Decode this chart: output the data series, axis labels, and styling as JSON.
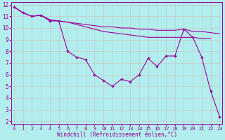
{
  "xlabel": "Windchill (Refroidissement éolien,°C)",
  "background_color": "#b2eeee",
  "line_color": "#990099",
  "grid_color": "#cccccc",
  "xlim": [
    0,
    23
  ],
  "ylim": [
    2,
    12
  ],
  "yticks": [
    2,
    3,
    4,
    5,
    6,
    7,
    8,
    9,
    10,
    11,
    12
  ],
  "xticks": [
    0,
    1,
    2,
    3,
    4,
    5,
    6,
    7,
    8,
    9,
    10,
    11,
    12,
    13,
    14,
    15,
    16,
    17,
    18,
    19,
    20,
    21,
    22,
    23
  ],
  "line1_x": [
    0,
    1,
    2,
    3,
    4,
    5,
    6,
    7,
    8,
    9,
    10,
    11,
    12,
    13,
    14,
    15,
    16,
    17,
    18,
    19,
    20,
    21,
    22,
    23
  ],
  "line1_y": [
    11.8,
    11.3,
    11.0,
    11.1,
    10.6,
    10.6,
    8.0,
    7.5,
    7.3,
    6.0,
    5.5,
    5.0,
    5.6,
    5.4,
    6.0,
    7.4,
    6.7,
    7.6,
    7.6,
    9.9,
    9.2,
    7.5,
    4.6,
    2.4
  ],
  "line2_x": [
    0,
    1,
    2,
    3,
    4,
    5,
    6,
    7,
    8,
    9,
    10,
    11,
    12,
    13,
    14,
    15,
    16,
    17,
    18,
    19,
    20,
    21,
    22,
    23
  ],
  "line2_y": [
    11.8,
    11.3,
    11.0,
    11.1,
    10.7,
    10.6,
    10.5,
    10.4,
    10.3,
    10.2,
    10.1,
    10.1,
    10.0,
    10.0,
    9.9,
    9.9,
    9.8,
    9.8,
    9.8,
    9.9,
    9.7,
    9.7,
    9.6,
    9.5
  ],
  "line3_x": [
    0,
    1,
    2,
    3,
    4,
    5,
    6,
    7,
    8,
    9,
    10,
    11,
    12,
    13,
    14,
    15,
    16,
    17,
    18,
    19,
    20,
    21,
    22,
    23
  ],
  "line3_y": [
    11.8,
    11.3,
    11.0,
    11.1,
    10.7,
    10.6,
    10.5,
    10.3,
    10.1,
    9.9,
    9.7,
    9.6,
    9.5,
    9.4,
    9.3,
    9.2,
    9.2,
    9.2,
    9.2,
    9.2,
    9.2,
    9.1,
    9.1,
    null
  ]
}
